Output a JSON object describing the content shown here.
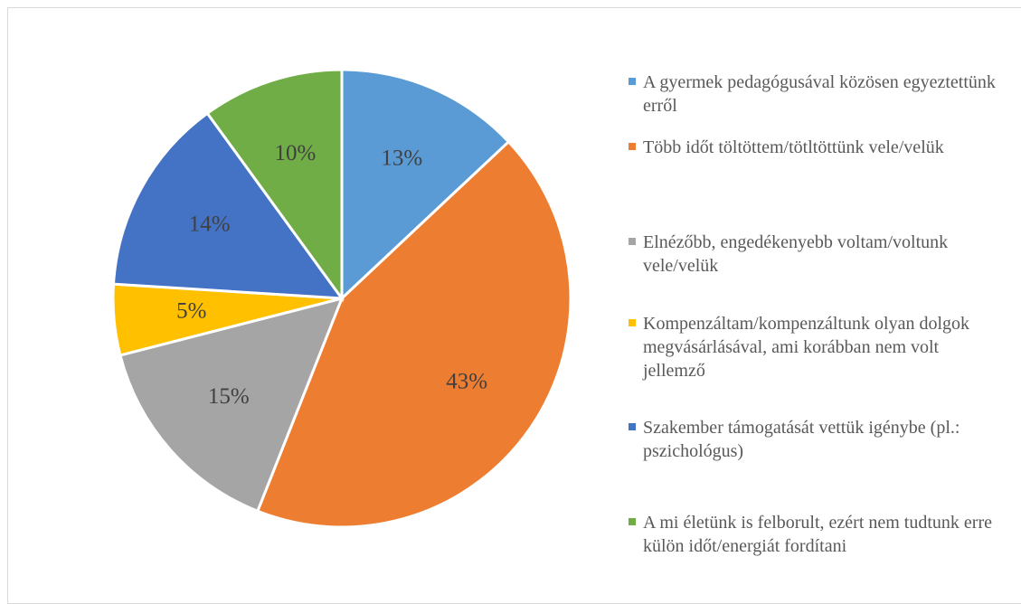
{
  "chart_data": {
    "type": "pie",
    "categories": [
      "A gyermek pedagógusával közösen egyeztettünk erről",
      "Több időt töltöttem/tötltöttünk vele/velük",
      "Elnézőbb, engedékenyebb voltam/voltunk vele/velük",
      "Kompenzáltam/kompenzáltunk olyan dolgok megvásárlásával, ami korábban nem volt jellemző",
      "Szakember támogatását vettük igénybe (pl.: pszichológus)",
      "A mi életünk is felborult, ezért nem tudtunk erre külön időt/energiát fordítani"
    ],
    "values": [
      13,
      43,
      15,
      5,
      14,
      10
    ],
    "value_labels": [
      "13%",
      "43%",
      "15%",
      "5%",
      "14%",
      "10%"
    ],
    "colors": [
      "#5b9bd5",
      "#ed7d31",
      "#a5a5a5",
      "#ffc000",
      "#4472c4",
      "#70ad47"
    ],
    "legend": "right"
  }
}
